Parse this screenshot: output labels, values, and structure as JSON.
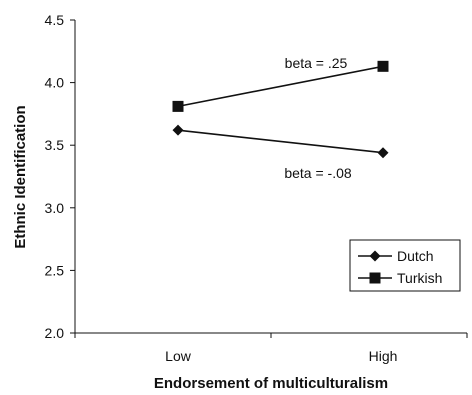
{
  "chart_data": {
    "type": "line",
    "xlabel": "Endorsement of multiculturalism",
    "ylabel": "Ethnic Identification",
    "categories": [
      "Low",
      "High"
    ],
    "ylim": [
      2.0,
      4.5
    ],
    "yticks": [
      "2.0",
      "2.5",
      "3.0",
      "3.5",
      "4.0",
      "4.5"
    ],
    "grid": false,
    "legend_position": "bottom-right",
    "series": [
      {
        "name": "Dutch",
        "marker": "diamond",
        "values": [
          3.62,
          3.44
        ]
      },
      {
        "name": "Turkish",
        "marker": "square",
        "values": [
          3.81,
          4.13
        ]
      }
    ],
    "annotations": [
      {
        "text": "beta = .25",
        "series": "Turkish"
      },
      {
        "text": "beta = -.08",
        "series": "Dutch"
      }
    ]
  }
}
